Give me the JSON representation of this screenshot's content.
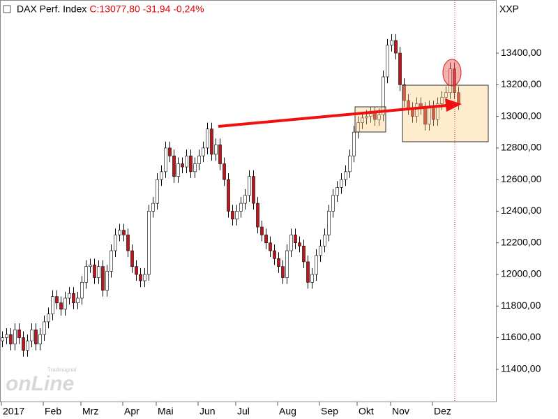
{
  "chart_data": {
    "type": "candlestick",
    "title": "DAX Perf. Index",
    "quote": "C:13077,80 -31,94 -0,24%",
    "axis_name": "XXP",
    "watermark": "onLine",
    "watermark_brand": "Tradesignal",
    "up_color": "#ffffff",
    "down_color": "#c0141c",
    "categories": [
      "2017",
      null,
      null,
      null,
      null,
      null,
      null,
      null,
      null,
      null,
      "Feb",
      null,
      null,
      null,
      null,
      null,
      null,
      null,
      null,
      "Mrz",
      null,
      null,
      null,
      null,
      null,
      null,
      null,
      null,
      null,
      "Apr",
      null,
      null,
      null,
      null,
      null,
      null,
      null,
      "Mai",
      null,
      null,
      null,
      null,
      null,
      null,
      null,
      null,
      null,
      "Jun",
      null,
      null,
      null,
      null,
      null,
      null,
      null,
      null,
      "Jul",
      null,
      null,
      null,
      null,
      null,
      null,
      null,
      null,
      null,
      "Aug",
      null,
      null,
      null,
      null,
      null,
      null,
      null,
      null,
      null,
      "Sep",
      null,
      null,
      null,
      null,
      null,
      null,
      null,
      null,
      "Okt",
      null,
      null,
      null,
      null,
      null,
      null,
      null,
      "Nov",
      null,
      null,
      null,
      null,
      null,
      null,
      null,
      null,
      null,
      "Dez",
      null,
      null,
      null,
      null,
      null,
      null
    ],
    "ohlc": [
      [
        11580,
        11640,
        11540,
        11600
      ],
      [
        11600,
        11660,
        11560,
        11620
      ],
      [
        11620,
        11660,
        11520,
        11560
      ],
      [
        11560,
        11690,
        11520,
        11650
      ],
      [
        11650,
        11690,
        11560,
        11600
      ],
      [
        11600,
        11640,
        11480,
        11520
      ],
      [
        11520,
        11620,
        11480,
        11580
      ],
      [
        11580,
        11690,
        11540,
        11650
      ],
      [
        11650,
        11690,
        11520,
        11560
      ],
      [
        11560,
        11660,
        11520,
        11620
      ],
      [
        11620,
        11740,
        11580,
        11700
      ],
      [
        11700,
        11790,
        11660,
        11750
      ],
      [
        11750,
        11900,
        11710,
        11860
      ],
      [
        11860,
        11900,
        11780,
        11820
      ],
      [
        11820,
        11860,
        11740,
        11780
      ],
      [
        11780,
        11890,
        11740,
        11850
      ],
      [
        11850,
        11920,
        11810,
        11880
      ],
      [
        11880,
        11920,
        11780,
        11820
      ],
      [
        11820,
        11890,
        11780,
        11850
      ],
      [
        11850,
        11990,
        11810,
        11950
      ],
      [
        11950,
        12090,
        11910,
        12050
      ],
      [
        12050,
        12100,
        12010,
        12060
      ],
      [
        12060,
        12100,
        11940,
        11980
      ],
      [
        11980,
        12090,
        11940,
        12050
      ],
      [
        12050,
        12090,
        11860,
        11900
      ],
      [
        11900,
        12060,
        11860,
        12020
      ],
      [
        12020,
        12190,
        11980,
        12150
      ],
      [
        12150,
        12290,
        12110,
        12250
      ],
      [
        12250,
        12320,
        12210,
        12280
      ],
      [
        12280,
        12320,
        12210,
        12250
      ],
      [
        12250,
        12290,
        12110,
        12150
      ],
      [
        12150,
        12190,
        12010,
        12050
      ],
      [
        12050,
        12090,
        11960,
        12000
      ],
      [
        12000,
        12040,
        11920,
        11960
      ],
      [
        11960,
        12040,
        11920,
        12000
      ],
      [
        12000,
        12440,
        11960,
        12400
      ],
      [
        12400,
        12490,
        12360,
        12450
      ],
      [
        12450,
        12640,
        12410,
        12600
      ],
      [
        12600,
        12690,
        12560,
        12650
      ],
      [
        12650,
        12840,
        12610,
        12800
      ],
      [
        12800,
        12840,
        12710,
        12750
      ],
      [
        12750,
        12790,
        12580,
        12620
      ],
      [
        12620,
        12740,
        12580,
        12700
      ],
      [
        12700,
        12740,
        12640,
        12680
      ],
      [
        12680,
        12790,
        12640,
        12750
      ],
      [
        12750,
        12790,
        12610,
        12650
      ],
      [
        12650,
        12740,
        12610,
        12700
      ],
      [
        12700,
        12790,
        12660,
        12750
      ],
      [
        12750,
        12840,
        12710,
        12800
      ],
      [
        12800,
        12960,
        12760,
        12920
      ],
      [
        12920,
        12960,
        12720,
        12760
      ],
      [
        12760,
        12860,
        12720,
        12820
      ],
      [
        12820,
        12860,
        12660,
        12700
      ],
      [
        12700,
        12740,
        12560,
        12600
      ],
      [
        12600,
        12640,
        12360,
        12400
      ],
      [
        12400,
        12440,
        12310,
        12350
      ],
      [
        12350,
        12440,
        12310,
        12400
      ],
      [
        12400,
        12490,
        12360,
        12450
      ],
      [
        12450,
        12540,
        12410,
        12500
      ],
      [
        12500,
        12660,
        12460,
        12620
      ],
      [
        12620,
        12660,
        12410,
        12450
      ],
      [
        12450,
        12490,
        12260,
        12300
      ],
      [
        12300,
        12340,
        12210,
        12250
      ],
      [
        12250,
        12290,
        12160,
        12200
      ],
      [
        12200,
        12240,
        12110,
        12150
      ],
      [
        12150,
        12190,
        12060,
        12100
      ],
      [
        12100,
        12140,
        12010,
        12050
      ],
      [
        12050,
        12090,
        11940,
        11980
      ],
      [
        11980,
        12190,
        11940,
        12150
      ],
      [
        12150,
        12290,
        12110,
        12250
      ],
      [
        12250,
        12290,
        12160,
        12200
      ],
      [
        12200,
        12240,
        12140,
        12180
      ],
      [
        12180,
        12220,
        12040,
        12080
      ],
      [
        12080,
        12120,
        11910,
        11950
      ],
      [
        11950,
        12040,
        11910,
        12000
      ],
      [
        12000,
        12160,
        11960,
        12120
      ],
      [
        12120,
        12220,
        12080,
        12180
      ],
      [
        12180,
        12290,
        12140,
        12250
      ],
      [
        12250,
        12440,
        12210,
        12400
      ],
      [
        12400,
        12540,
        12360,
        12500
      ],
      [
        12500,
        12590,
        12460,
        12550
      ],
      [
        12550,
        12640,
        12510,
        12600
      ],
      [
        12600,
        12690,
        12560,
        12650
      ],
      [
        12650,
        12790,
        12610,
        12750
      ],
      [
        12750,
        12940,
        12710,
        12900
      ],
      [
        12900,
        13000,
        12860,
        12960
      ],
      [
        12960,
        13030,
        12920,
        12990
      ],
      [
        12990,
        13040,
        12950,
        13000
      ],
      [
        13000,
        13060,
        12960,
        13020
      ],
      [
        13020,
        13060,
        12940,
        12980
      ],
      [
        12980,
        13050,
        12940,
        13010
      ],
      [
        13010,
        13290,
        12970,
        13250
      ],
      [
        13250,
        13490,
        13210,
        13450
      ],
      [
        13450,
        13520,
        13410,
        13480
      ],
      [
        13480,
        13520,
        13360,
        13400
      ],
      [
        13400,
        13440,
        13160,
        13200
      ],
      [
        13200,
        13240,
        13060,
        13100
      ],
      [
        13100,
        13140,
        13010,
        13050
      ],
      [
        13050,
        13090,
        12960,
        13000
      ],
      [
        13000,
        13120,
        12960,
        13080
      ],
      [
        13080,
        13120,
        13010,
        13050
      ],
      [
        13050,
        13090,
        12910,
        12950
      ],
      [
        12950,
        13100,
        12910,
        13060
      ],
      [
        13060,
        13100,
        12940,
        12980
      ],
      [
        12980,
        13120,
        12940,
        13080
      ],
      [
        13080,
        13160,
        13040,
        13120
      ],
      [
        13120,
        13190,
        13080,
        13150
      ],
      [
        13150,
        13340,
        13110,
        13300
      ],
      [
        13300,
        13340,
        13110,
        13150
      ],
      [
        13150,
        13190,
        13040,
        13077.8
      ]
    ],
    "ylim": [
      11196,
      13736
    ],
    "yticks": [
      {
        "value": 11400,
        "label": "11400,00"
      },
      {
        "value": 11600,
        "label": "11600,00"
      },
      {
        "value": 11800,
        "label": "11800,00"
      },
      {
        "value": 12000,
        "label": "12000,00"
      },
      {
        "value": 12200,
        "label": "12200,00"
      },
      {
        "value": 12400,
        "label": "12400,00"
      },
      {
        "value": 12600,
        "label": "12600,00"
      },
      {
        "value": 12800,
        "label": "12800,00"
      },
      {
        "value": 13000,
        "label": "13000,00"
      },
      {
        "value": 13200,
        "label": "13200,00"
      },
      {
        "value": 13400,
        "label": "13400,00"
      }
    ]
  }
}
